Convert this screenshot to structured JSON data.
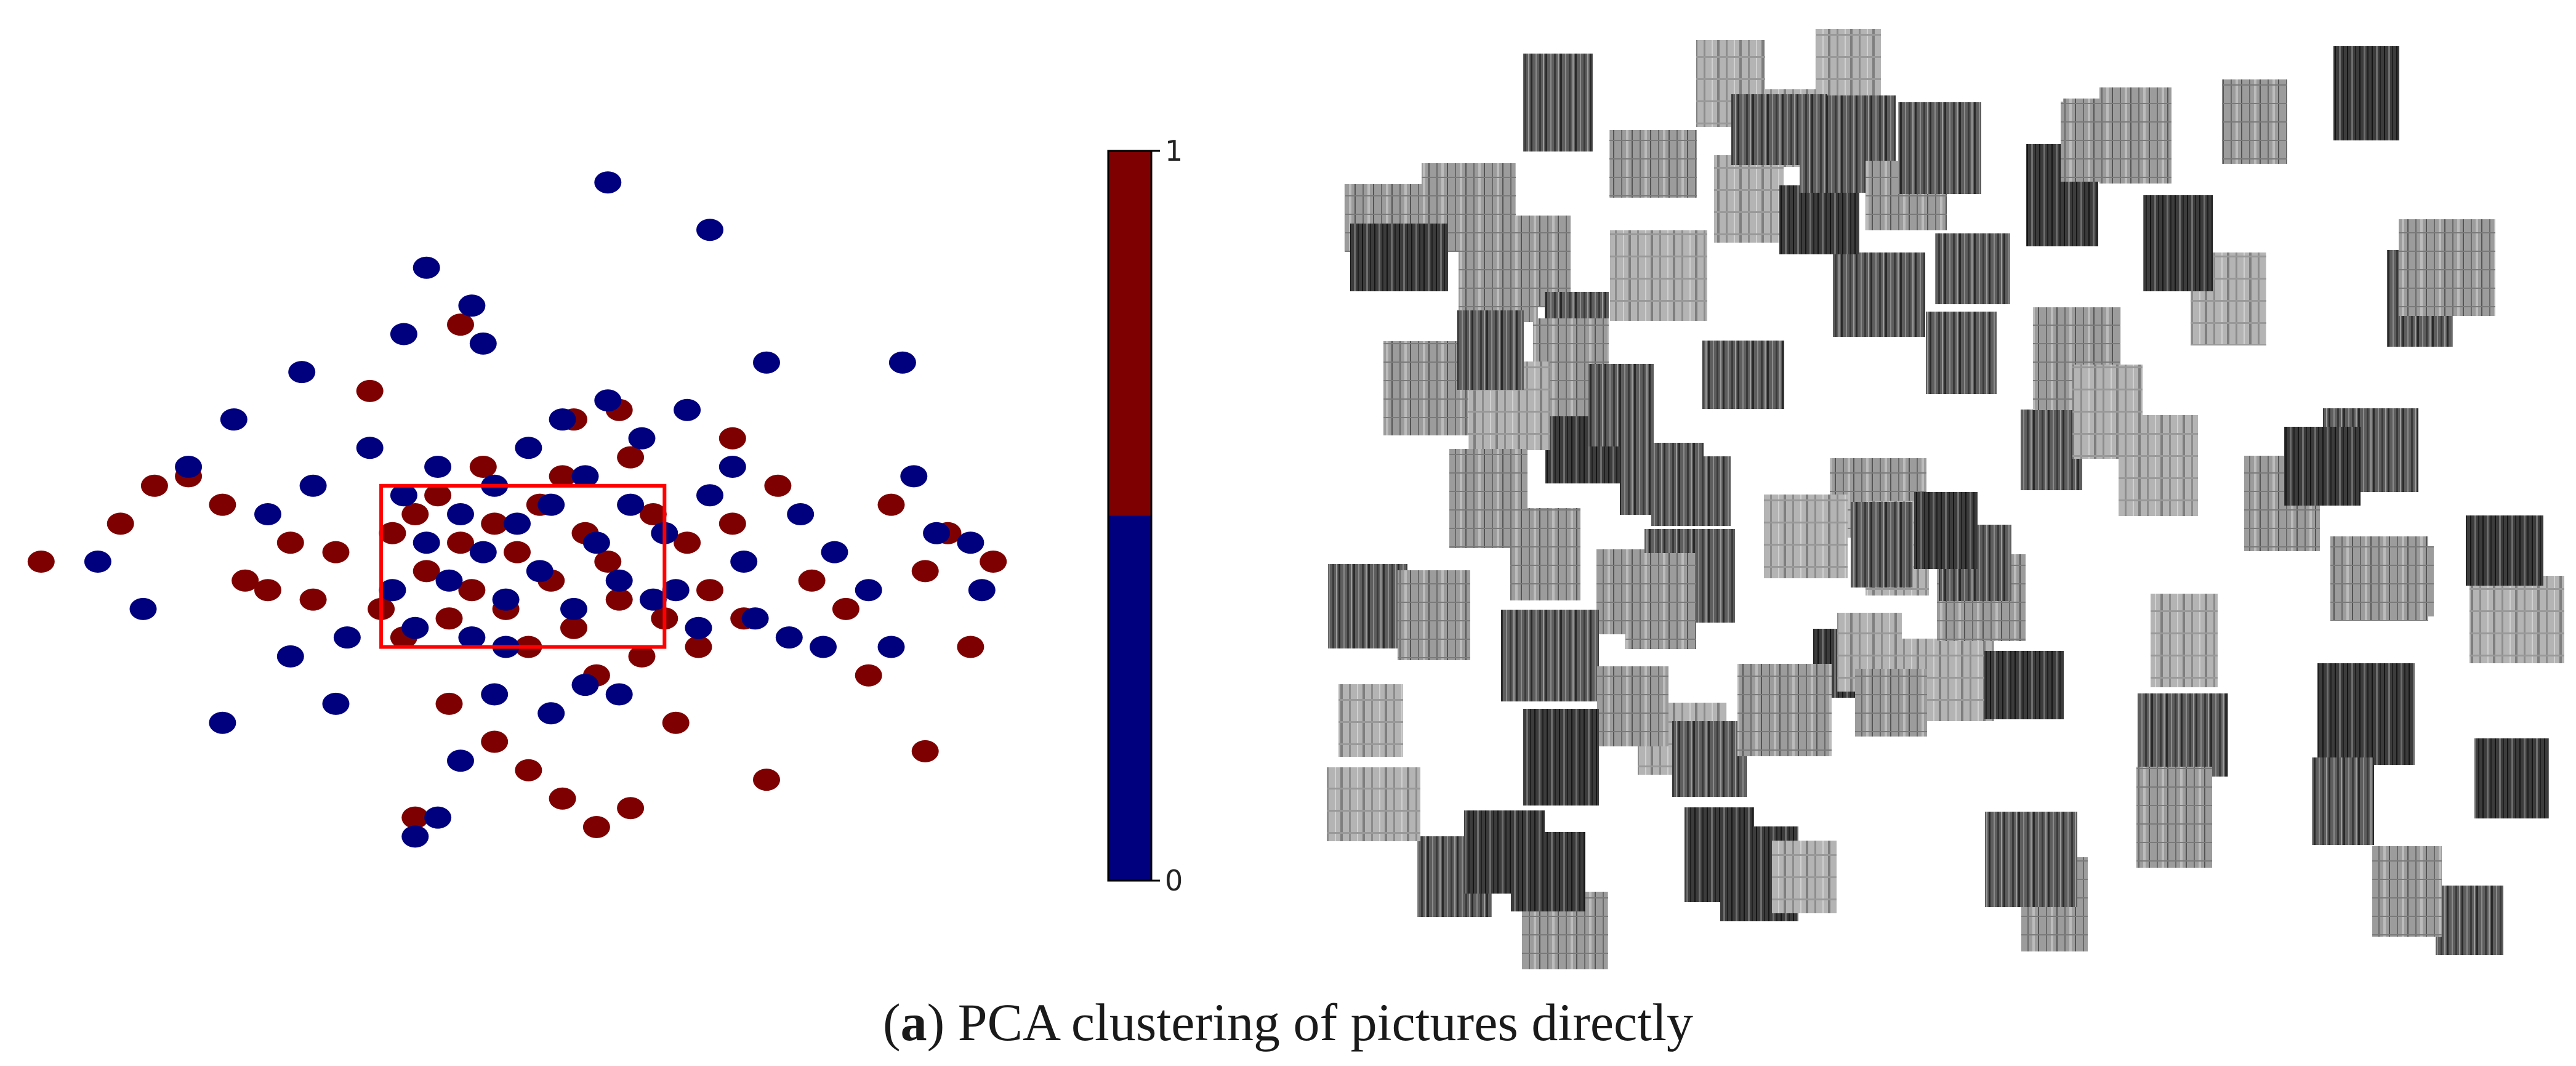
{
  "caption": {
    "label": "a",
    "text": " PCA clustering of pictures directly"
  },
  "chart_data": {
    "type": "scatter",
    "title": "",
    "xlabel": "",
    "ylabel": "",
    "axes_visible": false,
    "grid": false,
    "colorbar": {
      "orientation": "vertical",
      "placement": "right of scatter",
      "min_label": "0",
      "max_label": "1",
      "colors": {
        "0": "#00007f",
        "1": "#7f0000"
      }
    },
    "highlight_box": {
      "color": "#ff0000",
      "x_range": [
        -1.2,
        1.3
      ],
      "y_range": [
        -0.9,
        0.8
      ]
    },
    "series_colors": {
      "class_0": "#00007f",
      "class_1": "#7f0000"
    },
    "points": [
      [
        -4.2,
        0.0,
        1
      ],
      [
        -3.5,
        0.4,
        1
      ],
      [
        -3.2,
        0.8,
        1
      ],
      [
        -2.9,
        0.9,
        1
      ],
      [
        -2.6,
        0.6,
        1
      ],
      [
        -2.4,
        -0.2,
        1
      ],
      [
        -2.2,
        -0.3,
        1
      ],
      [
        -2.0,
        0.2,
        1
      ],
      [
        -1.8,
        -0.4,
        1
      ],
      [
        -1.6,
        0.1,
        1
      ],
      [
        -1.2,
        -0.5,
        1
      ],
      [
        -1.1,
        0.3,
        1
      ],
      [
        -1.0,
        -0.8,
        1
      ],
      [
        -0.9,
        0.5,
        1
      ],
      [
        -0.8,
        -0.1,
        1
      ],
      [
        -0.7,
        0.7,
        1
      ],
      [
        -0.6,
        -0.6,
        1
      ],
      [
        -0.5,
        0.2,
        1
      ],
      [
        -0.4,
        -0.3,
        1
      ],
      [
        -0.3,
        1.0,
        1
      ],
      [
        -0.2,
        0.4,
        1
      ],
      [
        -0.1,
        -0.5,
        1
      ],
      [
        0.0,
        0.1,
        1
      ],
      [
        0.1,
        -0.9,
        1
      ],
      [
        0.2,
        0.6,
        1
      ],
      [
        0.3,
        -0.2,
        1
      ],
      [
        0.4,
        0.9,
        1
      ],
      [
        0.5,
        -0.7,
        1
      ],
      [
        0.6,
        0.3,
        1
      ],
      [
        0.7,
        -1.2,
        1
      ],
      [
        0.8,
        0.0,
        1
      ],
      [
        0.9,
        -0.4,
        1
      ],
      [
        1.0,
        1.1,
        1
      ],
      [
        1.1,
        -1.0,
        1
      ],
      [
        1.2,
        0.5,
        1
      ],
      [
        1.3,
        -0.6,
        1
      ],
      [
        1.5,
        0.2,
        1
      ],
      [
        1.6,
        -0.9,
        1
      ],
      [
        1.7,
        -0.3,
        1
      ],
      [
        1.9,
        0.4,
        1
      ],
      [
        2.0,
        -0.6,
        1
      ],
      [
        2.3,
        0.8,
        1
      ],
      [
        2.6,
        -0.2,
        1
      ],
      [
        2.9,
        -0.5,
        1
      ],
      [
        3.1,
        -1.2,
        1
      ],
      [
        3.3,
        0.6,
        1
      ],
      [
        3.6,
        -0.1,
        1
      ],
      [
        3.8,
        0.3,
        1
      ],
      [
        4.0,
        -0.9,
        1
      ],
      [
        4.2,
        0.0,
        1
      ],
      [
        -0.6,
        -1.5,
        1
      ],
      [
        -0.2,
        -1.9,
        1
      ],
      [
        0.1,
        -2.2,
        1
      ],
      [
        0.4,
        -2.5,
        1
      ],
      [
        0.7,
        -2.8,
        1
      ],
      [
        1.0,
        -2.6,
        1
      ],
      [
        -0.9,
        -2.7,
        1
      ],
      [
        1.4,
        -1.7,
        1
      ],
      [
        2.2,
        -2.3,
        1
      ],
      [
        3.6,
        -2.0,
        1
      ],
      [
        -0.5,
        2.5,
        1
      ],
      [
        0.5,
        1.5,
        1
      ],
      [
        0.9,
        1.6,
        1
      ],
      [
        -1.3,
        1.8,
        1
      ],
      [
        1.9,
        1.3,
        1
      ],
      [
        -3.7,
        0.0,
        0
      ],
      [
        -3.3,
        -0.5,
        0
      ],
      [
        -2.9,
        1.0,
        0
      ],
      [
        -2.5,
        1.5,
        0
      ],
      [
        -2.2,
        0.5,
        0
      ],
      [
        -2.0,
        -1.0,
        0
      ],
      [
        -1.8,
        0.8,
        0
      ],
      [
        -1.5,
        -0.8,
        0
      ],
      [
        -1.3,
        1.2,
        0
      ],
      [
        -1.1,
        -0.3,
        0
      ],
      [
        -1.0,
        0.7,
        0
      ],
      [
        -0.9,
        -0.7,
        0
      ],
      [
        -0.8,
        0.2,
        0
      ],
      [
        -0.7,
        1.0,
        0
      ],
      [
        -0.6,
        -0.2,
        0
      ],
      [
        -0.5,
        0.5,
        0
      ],
      [
        -0.4,
        -0.8,
        0
      ],
      [
        -0.3,
        0.1,
        0
      ],
      [
        -0.2,
        0.8,
        0
      ],
      [
        -0.1,
        -0.4,
        0
      ],
      [
        0.0,
        0.4,
        0
      ],
      [
        0.1,
        1.2,
        0
      ],
      [
        0.2,
        -0.1,
        0
      ],
      [
        0.3,
        0.6,
        0
      ],
      [
        0.4,
        1.5,
        0
      ],
      [
        0.5,
        -0.5,
        0
      ],
      [
        0.6,
        0.9,
        0
      ],
      [
        0.7,
        0.2,
        0
      ],
      [
        0.8,
        1.7,
        0
      ],
      [
        0.9,
        -0.2,
        0
      ],
      [
        1.0,
        0.6,
        0
      ],
      [
        1.1,
        1.3,
        0
      ],
      [
        1.2,
        -0.4,
        0
      ],
      [
        1.3,
        0.3,
        0
      ],
      [
        1.5,
        1.6,
        0
      ],
      [
        1.6,
        -0.7,
        0
      ],
      [
        1.7,
        0.7,
        0
      ],
      [
        1.9,
        1.0,
        0
      ],
      [
        2.0,
        0.0,
        0
      ],
      [
        2.2,
        2.1,
        0
      ],
      [
        2.4,
        -0.8,
        0
      ],
      [
        2.5,
        0.5,
        0
      ],
      [
        2.8,
        0.1,
        0
      ],
      [
        3.1,
        -0.3,
        0
      ],
      [
        3.3,
        -0.9,
        0
      ],
      [
        3.5,
        0.9,
        0
      ],
      [
        3.7,
        0.3,
        0
      ],
      [
        4.0,
        0.2,
        0
      ],
      [
        4.1,
        -0.3,
        0
      ],
      [
        3.4,
        2.1,
        0
      ],
      [
        -0.8,
        3.1,
        0
      ],
      [
        -1.0,
        2.4,
        0
      ],
      [
        -0.4,
        2.7,
        0
      ],
      [
        0.8,
        4.0,
        0
      ],
      [
        1.7,
        3.5,
        0
      ],
      [
        -1.9,
        2.0,
        0
      ],
      [
        -0.3,
        2.3,
        0
      ],
      [
        -2.6,
        -1.7,
        0
      ],
      [
        -0.2,
        -1.4,
        0
      ],
      [
        0.3,
        -1.6,
        0
      ],
      [
        0.6,
        -1.3,
        0
      ],
      [
        0.9,
        -1.4,
        0
      ],
      [
        -0.5,
        -2.1,
        0
      ],
      [
        -0.7,
        -2.7,
        0
      ],
      [
        -0.9,
        -2.9,
        0
      ],
      [
        2.1,
        -0.6,
        0
      ],
      [
        2.7,
        -0.9,
        0
      ],
      [
        -1.6,
        -1.5,
        0
      ],
      [
        -0.1,
        -0.9,
        0
      ],
      [
        1.4,
        -0.3,
        0
      ]
    ]
  },
  "tiles": {
    "count": 96,
    "grayscale": true
  }
}
